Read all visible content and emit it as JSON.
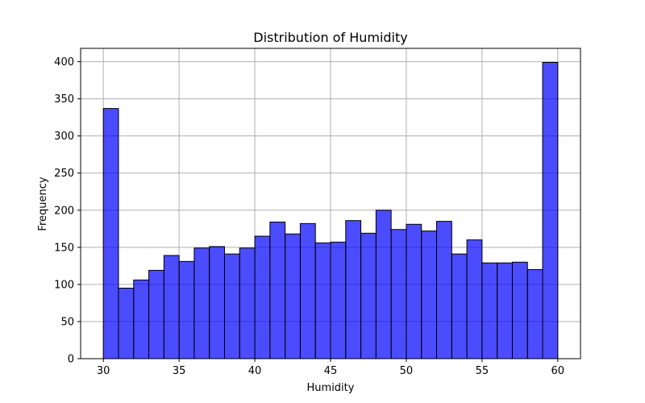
{
  "chart_data": {
    "type": "bar",
    "title": "Distribution of Humidity",
    "xlabel": "Humidity",
    "ylabel": "Frequency",
    "xlim": [
      28.5,
      61.5
    ],
    "ylim": [
      0,
      418
    ],
    "xticks": [
      30,
      35,
      40,
      45,
      50,
      55,
      60
    ],
    "yticks": [
      0,
      50,
      100,
      150,
      200,
      250,
      300,
      350,
      400
    ],
    "grid": true,
    "bar_color": "#0000ff",
    "bar_opacity": 0.7,
    "edge_color": "#000000",
    "bins": [
      {
        "start": 30,
        "end": 31,
        "value": 337
      },
      {
        "start": 31,
        "end": 32,
        "value": 95
      },
      {
        "start": 32,
        "end": 33,
        "value": 106
      },
      {
        "start": 33,
        "end": 34,
        "value": 119
      },
      {
        "start": 34,
        "end": 35,
        "value": 139
      },
      {
        "start": 35,
        "end": 36,
        "value": 131
      },
      {
        "start": 36,
        "end": 37,
        "value": 149
      },
      {
        "start": 37,
        "end": 38,
        "value": 151
      },
      {
        "start": 38,
        "end": 39,
        "value": 141
      },
      {
        "start": 39,
        "end": 40,
        "value": 149
      },
      {
        "start": 40,
        "end": 41,
        "value": 165
      },
      {
        "start": 41,
        "end": 42,
        "value": 184
      },
      {
        "start": 42,
        "end": 43,
        "value": 168
      },
      {
        "start": 43,
        "end": 44,
        "value": 182
      },
      {
        "start": 44,
        "end": 45,
        "value": 156
      },
      {
        "start": 45,
        "end": 46,
        "value": 157
      },
      {
        "start": 46,
        "end": 47,
        "value": 186
      },
      {
        "start": 47,
        "end": 48,
        "value": 169
      },
      {
        "start": 48,
        "end": 49,
        "value": 200
      },
      {
        "start": 49,
        "end": 50,
        "value": 174
      },
      {
        "start": 50,
        "end": 51,
        "value": 181
      },
      {
        "start": 51,
        "end": 52,
        "value": 172
      },
      {
        "start": 52,
        "end": 53,
        "value": 185
      },
      {
        "start": 53,
        "end": 54,
        "value": 141
      },
      {
        "start": 54,
        "end": 55,
        "value": 160
      },
      {
        "start": 55,
        "end": 56,
        "value": 129
      },
      {
        "start": 56,
        "end": 57,
        "value": 129
      },
      {
        "start": 57,
        "end": 58,
        "value": 130
      },
      {
        "start": 58,
        "end": 59,
        "value": 120
      },
      {
        "start": 59,
        "end": 60,
        "value": 399
      }
    ]
  }
}
